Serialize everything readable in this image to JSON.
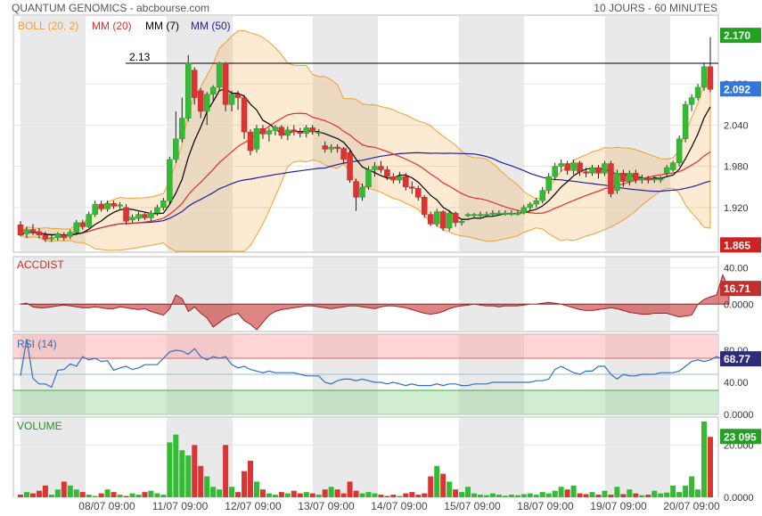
{
  "header": {
    "title": "QUANTUM GENOMICS - abcbourse.com",
    "period": "10 JOURS - 60 MINUTES"
  },
  "colors": {
    "boll": "#f0a030",
    "mm20": "#e03030",
    "mm7": "#000000",
    "mm50": "#2020a0",
    "up": "#33bb33",
    "down": "#dd3333",
    "rsi": "#3070c0",
    "accdist": "#c03030"
  },
  "chart_data": [
    {
      "id": "price",
      "type": "candlestick",
      "legend": [
        "BOLL (20, 2)",
        "MM (20)",
        "MM (7)",
        "MM (50)"
      ],
      "ylim": [
        1.855,
        2.2
      ],
      "y_ticks": [
        "2.100",
        "2.040",
        "1.980",
        "1.920"
      ],
      "y_tick_values": [
        2.1,
        2.04,
        1.98,
        1.92
      ],
      "x_labels": [
        "08/07 09:00",
        "11/07 09:00",
        "12/07 09:00",
        "13/07 09:00",
        "14/07 09:00",
        "15/07 09:00",
        "18/07 09:00",
        "19/07 09:00",
        "20/07 09:00"
      ],
      "badges": {
        "high": "2.170",
        "last": "2.092",
        "low": "1.865"
      },
      "resistance": {
        "label": "2.13",
        "value": 2.13
      },
      "candles": [
        [
          1.895,
          1.88,
          1.9,
          1.878
        ],
        [
          1.882,
          1.888,
          1.892,
          1.876
        ],
        [
          1.888,
          1.884,
          1.896,
          1.88
        ],
        [
          1.885,
          1.88,
          1.89,
          1.875
        ],
        [
          1.88,
          1.874,
          1.885,
          1.87
        ],
        [
          1.874,
          1.876,
          1.88,
          1.87
        ],
        [
          1.876,
          1.882,
          1.884,
          1.872
        ],
        [
          1.88,
          1.876,
          1.884,
          1.872
        ],
        [
          1.878,
          1.884,
          1.888,
          1.874
        ],
        [
          1.884,
          1.898,
          1.902,
          1.88
        ],
        [
          1.898,
          1.892,
          1.902,
          1.888
        ],
        [
          1.892,
          1.91,
          1.914,
          1.89
        ],
        [
          1.91,
          1.925,
          1.93,
          1.906
        ],
        [
          1.925,
          1.918,
          1.93,
          1.914
        ],
        [
          1.918,
          1.926,
          1.93,
          1.914
        ],
        [
          1.926,
          1.922,
          1.93,
          1.918
        ],
        [
          1.922,
          1.924,
          1.928,
          1.918
        ],
        [
          1.92,
          1.9,
          1.925,
          1.895
        ],
        [
          1.902,
          1.906,
          1.91,
          1.898
        ],
        [
          1.904,
          1.91,
          1.914,
          1.9
        ],
        [
          1.91,
          1.905,
          1.912,
          1.902
        ],
        [
          1.905,
          1.912,
          1.916,
          1.9
        ],
        [
          1.912,
          1.92,
          1.924,
          1.908
        ],
        [
          1.92,
          1.93,
          1.934,
          1.916
        ],
        [
          1.93,
          1.99,
          1.994,
          1.926
        ],
        [
          1.99,
          2.02,
          2.06,
          1.985
        ],
        [
          2.02,
          2.05,
          2.08,
          2.015
        ],
        [
          2.05,
          2.13,
          2.142,
          2.045
        ],
        [
          2.12,
          2.08,
          2.124,
          2.07
        ],
        [
          2.09,
          2.06,
          2.094,
          2.05
        ],
        [
          2.06,
          2.085,
          2.088,
          2.04
        ],
        [
          2.085,
          2.095,
          2.098,
          2.075
        ],
        [
          2.095,
          2.13,
          2.132,
          2.09
        ],
        [
          2.13,
          2.07,
          2.132,
          2.06
        ],
        [
          2.07,
          2.085,
          2.09,
          2.06
        ],
        [
          2.085,
          2.08,
          2.09,
          2.062
        ],
        [
          2.08,
          2.03,
          2.084,
          2.02
        ],
        [
          2.03,
          2.003,
          2.034,
          1.996
        ],
        [
          2.005,
          2.035,
          2.04,
          2.0
        ],
        [
          2.035,
          2.027,
          2.04,
          2.02
        ],
        [
          2.027,
          2.032,
          2.036,
          2.016
        ],
        [
          2.032,
          2.037,
          2.04,
          2.025
        ],
        [
          2.037,
          2.025,
          2.04,
          2.02
        ],
        [
          2.025,
          2.033,
          2.038,
          2.018
        ],
        [
          2.033,
          2.03,
          2.04,
          2.025
        ],
        [
          2.03,
          2.028,
          2.036,
          2.022
        ],
        [
          2.028,
          2.036,
          2.04,
          2.022
        ],
        [
          2.036,
          2.03,
          2.04,
          2.026
        ],
        [
          2.03,
          2.03,
          2.034,
          2.024
        ],
        [
          2.01,
          2.005,
          2.016,
          2.0
        ],
        [
          2.005,
          2.008,
          2.012,
          2.0
        ],
        [
          2.008,
          2.006,
          2.012,
          2.0
        ],
        [
          2.006,
          1.99,
          2.008,
          1.985
        ],
        [
          2.0,
          1.96,
          2.005,
          1.956
        ],
        [
          1.958,
          1.935,
          1.962,
          1.915
        ],
        [
          1.935,
          1.95,
          1.955,
          1.93
        ],
        [
          1.95,
          1.975,
          1.98,
          1.946
        ],
        [
          1.975,
          1.98,
          1.986,
          1.965
        ],
        [
          1.98,
          1.975,
          1.988,
          1.97
        ],
        [
          1.975,
          1.965,
          1.98,
          1.96
        ],
        [
          1.965,
          1.96,
          1.97,
          1.955
        ],
        [
          1.96,
          1.965,
          1.972,
          1.955
        ],
        [
          1.965,
          1.95,
          1.97,
          1.945
        ],
        [
          1.95,
          1.948,
          1.958,
          1.94
        ],
        [
          1.948,
          1.935,
          1.952,
          1.93
        ],
        [
          1.935,
          1.91,
          1.938,
          1.905
        ],
        [
          1.91,
          1.896,
          1.914,
          1.893
        ],
        [
          1.896,
          1.914,
          1.918,
          1.892
        ],
        [
          1.914,
          1.89,
          1.916,
          1.886
        ],
        [
          1.89,
          1.912,
          1.916,
          1.886
        ],
        [
          1.912,
          1.898,
          1.914,
          1.892
        ],
        [
          1.898,
          1.9,
          1.904,
          1.894
        ],
        [
          1.91,
          1.91,
          1.912,
          1.906
        ],
        [
          1.91,
          1.91,
          1.912,
          1.906
        ],
        [
          1.91,
          1.91,
          1.914,
          1.906
        ],
        [
          1.91,
          1.91,
          1.914,
          1.906
        ],
        [
          1.91,
          1.912,
          1.916,
          1.908
        ],
        [
          1.912,
          1.912,
          1.916,
          1.908
        ],
        [
          1.912,
          1.912,
          1.916,
          1.908
        ],
        [
          1.912,
          1.912,
          1.916,
          1.908
        ],
        [
          1.912,
          1.912,
          1.916,
          1.908
        ],
        [
          1.912,
          1.92,
          1.924,
          1.91
        ],
        [
          1.92,
          1.925,
          1.928,
          1.915
        ],
        [
          1.925,
          1.93,
          1.934,
          1.92
        ],
        [
          1.93,
          1.945,
          1.95,
          1.926
        ],
        [
          1.945,
          1.965,
          1.97,
          1.94
        ],
        [
          1.965,
          1.98,
          1.985,
          1.96
        ],
        [
          1.98,
          1.984,
          1.99,
          1.972
        ],
        [
          1.984,
          1.974,
          1.988,
          1.968
        ],
        [
          1.974,
          1.985,
          1.99,
          1.968
        ],
        [
          1.985,
          1.972,
          1.988,
          1.966
        ],
        [
          1.972,
          1.97,
          1.978,
          1.964
        ],
        [
          1.97,
          1.978,
          1.982,
          1.966
        ],
        [
          1.978,
          1.97,
          1.982,
          1.962
        ],
        [
          1.97,
          1.984,
          1.988,
          1.966
        ],
        [
          1.984,
          1.94,
          1.988,
          1.935
        ],
        [
          1.945,
          1.97,
          1.975,
          1.94
        ],
        [
          1.97,
          1.958,
          1.975,
          1.95
        ],
        [
          1.958,
          1.97,
          1.974,
          1.952
        ],
        [
          1.97,
          1.96,
          1.975,
          1.955
        ],
        [
          1.96,
          1.963,
          1.968,
          1.955
        ],
        [
          1.963,
          1.96,
          1.966,
          1.955
        ],
        [
          1.96,
          1.962,
          1.966,
          1.956
        ],
        [
          1.962,
          1.962,
          1.966,
          1.956
        ],
        [
          1.97,
          1.978,
          1.982,
          1.966
        ],
        [
          1.975,
          1.985,
          1.988,
          1.972
        ],
        [
          1.985,
          2.02,
          2.025,
          1.98
        ],
        [
          2.02,
          2.07,
          2.075,
          2.015
        ],
        [
          2.07,
          2.08,
          2.085,
          2.06
        ],
        [
          2.08,
          2.095,
          2.1,
          2.076
        ],
        [
          2.095,
          2.125,
          2.13,
          2.09
        ],
        [
          2.125,
          2.092,
          2.168,
          2.088
        ]
      ]
    },
    {
      "id": "accdist",
      "type": "area",
      "title": "ACCDIST",
      "y_ticks": [
        "40.00",
        "0.0000"
      ],
      "y_tick_values": [
        40,
        0
      ],
      "ylim": [
        -30,
        52
      ],
      "badge": "16.71",
      "values": [
        0,
        1,
        -3,
        -4,
        -4,
        -3,
        -2,
        -1,
        -2,
        -3,
        -4,
        -4,
        -3,
        -4,
        -5,
        -5,
        -3,
        -4,
        -5,
        -6,
        -5,
        -8,
        -10,
        -12,
        -5,
        10,
        6,
        -8,
        -3,
        -10,
        -15,
        -25,
        -20,
        -15,
        -12,
        -10,
        -18,
        -22,
        -28,
        -20,
        -12,
        -8,
        -6,
        -5,
        -4,
        -3,
        -2,
        -2,
        -3,
        -4,
        -5,
        -4,
        -3,
        -2,
        -2,
        -3,
        -4,
        -5,
        -3,
        -2,
        -2,
        -3,
        -4,
        -6,
        -8,
        -10,
        -11,
        -10,
        -8,
        -5,
        -3,
        -2,
        -1,
        0,
        -1,
        -2,
        -2,
        -3,
        -2,
        -2,
        -2,
        -1,
        0,
        0,
        1,
        2,
        1,
        0,
        -2,
        -4,
        -6,
        -7,
        -7,
        -6,
        -5,
        -4,
        -5,
        -7,
        -9,
        -10,
        -11,
        -11,
        -10,
        -10,
        -10,
        -12,
        -14,
        -13,
        -12,
        0,
        5,
        8,
        10,
        32,
        16.71
      ]
    },
    {
      "id": "rsi",
      "type": "line",
      "title": "RSI (14)",
      "y_ticks": [
        "80.00",
        "40.00",
        "0.0000"
      ],
      "y_tick_values": [
        80,
        40,
        0
      ],
      "ylim": [
        0,
        100
      ],
      "bands": {
        "overbought": [
          70,
          100
        ],
        "oversold": [
          0,
          30
        ]
      },
      "badge": "68.77",
      "values": [
        48,
        94,
        45,
        38,
        38,
        34,
        55,
        56,
        63,
        60,
        72,
        68,
        70,
        66,
        67,
        55,
        58,
        60,
        56,
        58,
        62,
        62,
        62,
        70,
        78,
        80,
        79,
        75,
        82,
        72,
        68,
        72,
        70,
        72,
        62,
        58,
        60,
        56,
        54,
        52,
        54,
        52,
        52,
        52,
        52,
        50,
        48,
        48,
        48,
        40,
        38,
        42,
        44,
        44,
        42,
        44,
        42,
        40,
        40,
        38,
        40,
        38,
        36,
        38,
        36,
        36,
        36,
        38,
        36,
        38,
        38,
        36,
        36,
        38,
        38,
        38,
        40,
        40,
        40,
        40,
        40,
        40,
        40,
        42,
        42,
        44,
        56,
        60,
        56,
        52,
        50,
        54,
        54,
        60,
        60,
        50,
        44,
        50,
        48,
        48,
        50,
        50,
        50,
        52,
        52,
        52,
        54,
        60,
        66,
        68,
        66,
        68,
        72,
        68.77
      ]
    },
    {
      "id": "volume",
      "type": "bar",
      "title": "VOLUME",
      "y_ticks": [
        "20.000",
        "0.0000"
      ],
      "y_tick_values": [
        20000,
        0
      ],
      "ylim": [
        0,
        30000
      ],
      "badge": "23 095",
      "values": [
        1000,
        2000,
        1500,
        2500,
        4500,
        1000,
        3000,
        6000,
        4500,
        3000,
        2000,
        1000,
        500,
        1500,
        3000,
        2000,
        1000,
        500,
        1500,
        1000,
        2000,
        2500,
        1500,
        1000,
        21000,
        24000,
        18000,
        16000,
        20000,
        12000,
        8000,
        4000,
        3000,
        20000,
        4000,
        2000,
        10000,
        14000,
        6000,
        3000,
        1500,
        1000,
        2000,
        1500,
        2500,
        1500,
        2000,
        1500,
        1000,
        3000,
        4000,
        3000,
        1500,
        6000,
        2500,
        1500,
        2000,
        1500,
        1000,
        500,
        1000,
        500,
        1500,
        2000,
        1000,
        1500,
        8000,
        12000,
        9000,
        6000,
        3000,
        2000,
        4000,
        1500,
        1000,
        800,
        1500,
        1000,
        600,
        1000,
        800,
        1200,
        1500,
        1000,
        2000,
        1500,
        2500,
        4000,
        3000,
        4500,
        1500,
        1200,
        2000,
        1000,
        2500,
        1000,
        4000,
        1200,
        3000,
        1500,
        800,
        1000,
        2500,
        1500,
        1800,
        4500,
        2000,
        4500,
        8000,
        3000,
        29000,
        23095
      ]
    }
  ]
}
